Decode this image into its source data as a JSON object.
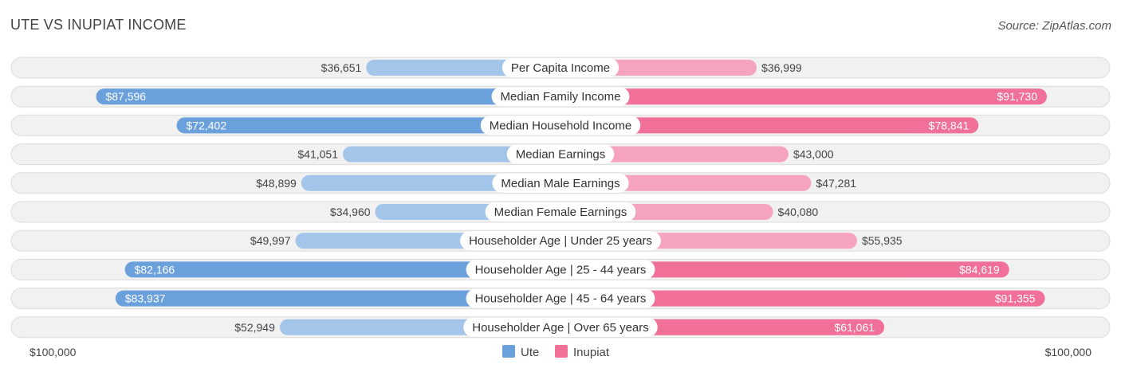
{
  "header": {
    "title": "UTE VS INUPIAT INCOME",
    "source": "Source: ZipAtlas.com"
  },
  "chart_data": {
    "type": "bar",
    "orientation": "diverging-horizontal",
    "title": "UTE VS INUPIAT INCOME",
    "categories": [
      "Per Capita Income",
      "Median Family Income",
      "Median Household Income",
      "Median Earnings",
      "Median Male Earnings",
      "Median Female Earnings",
      "Householder Age | Under 25 years",
      "Householder Age | 25 - 44 years",
      "Householder Age | 45 - 64 years",
      "Householder Age | Over 65 years"
    ],
    "series": [
      {
        "name": "Ute",
        "side": "left",
        "values": [
          36651,
          87596,
          72402,
          41051,
          48899,
          34960,
          49997,
          82166,
          83937,
          52949
        ],
        "labels": [
          "$36,651",
          "$87,596",
          "$72,402",
          "$41,051",
          "$48,899",
          "$34,960",
          "$49,997",
          "$82,166",
          "$83,937",
          "$52,949"
        ]
      },
      {
        "name": "Inupiat",
        "side": "right",
        "values": [
          36999,
          91730,
          78841,
          43000,
          47281,
          40080,
          55935,
          84619,
          91355,
          61061
        ],
        "labels": [
          "$36,999",
          "$91,730",
          "$78,841",
          "$43,000",
          "$47,281",
          "$40,080",
          "$55,935",
          "$84,619",
          "$91,355",
          "$61,061"
        ]
      }
    ],
    "xlim": [
      0,
      100000
    ],
    "axis_labels": {
      "left": "$100,000",
      "right": "$100,000"
    },
    "colors": {
      "ute_strong": "#6aa0dc",
      "ute_light": "#a3c5ea",
      "inupiat_strong": "#f07098",
      "inupiat_light": "#f6a3bf"
    },
    "legend": {
      "position": "bottom-center",
      "entries": [
        "Ute",
        "Inupiat"
      ]
    }
  }
}
